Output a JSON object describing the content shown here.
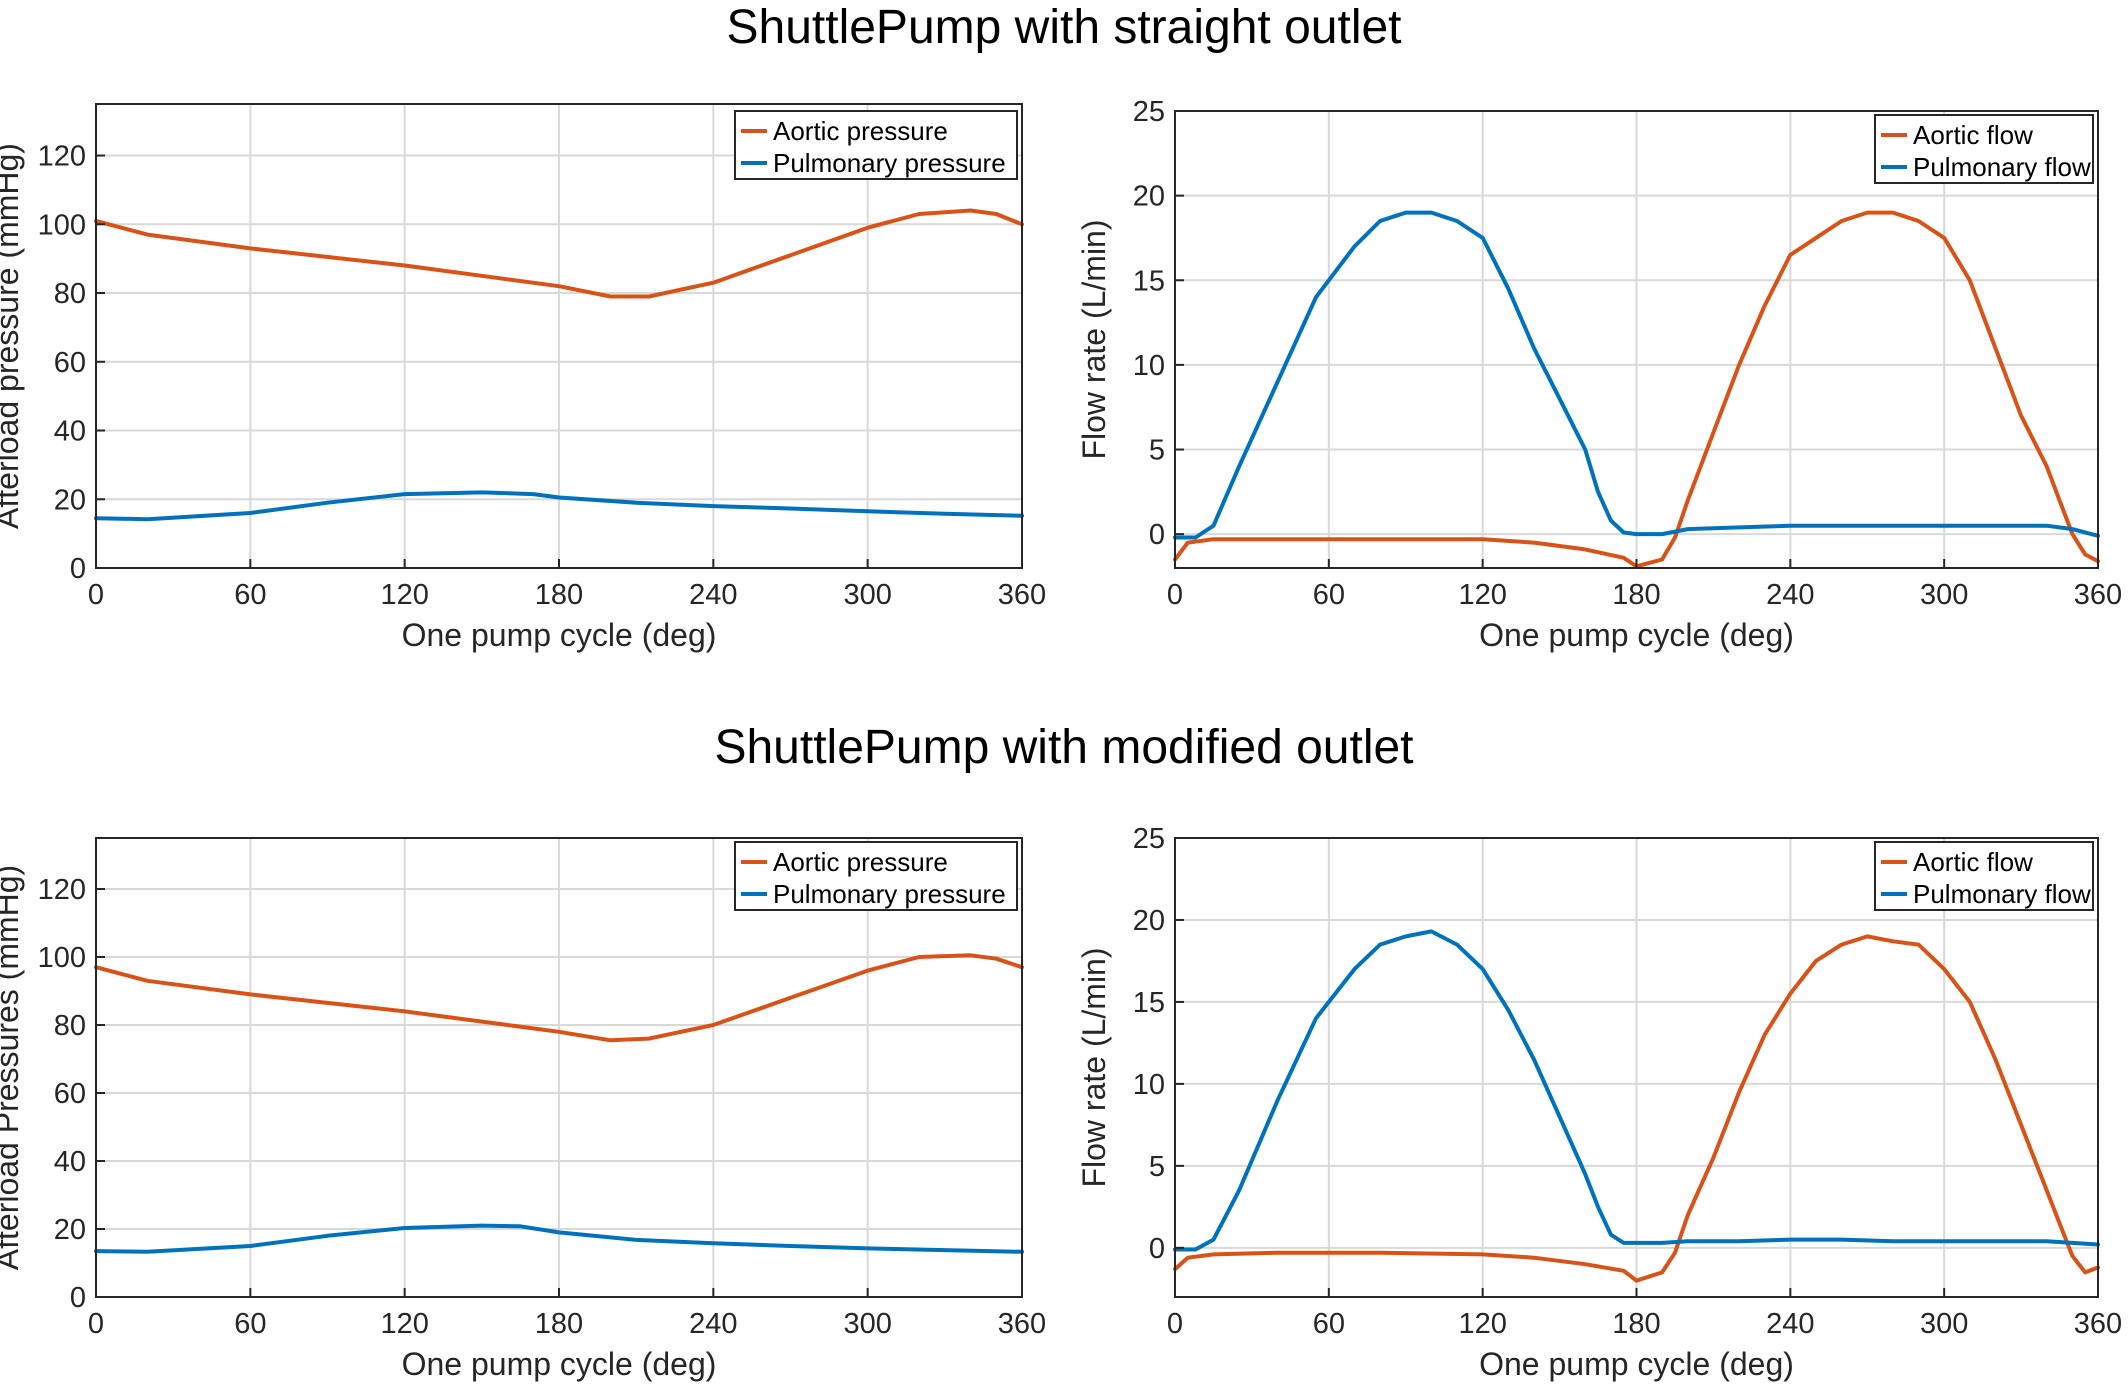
{
  "rows": [
    {
      "title": "ShuttlePump with straight outlet"
    },
    {
      "title": "ShuttlePump with modified outlet"
    }
  ],
  "colors": {
    "aortic": "#D95319",
    "pulmonary": "#0072BD",
    "grid": "#D9D9D9"
  },
  "chart_data": [
    {
      "type": "line",
      "title": "",
      "xlabel": "One pump cycle (deg)",
      "ylabel": "Afterload pressure (mmHg)",
      "xlim": [
        0,
        360
      ],
      "ylim": [
        0,
        135
      ],
      "xticks": [
        0,
        60,
        120,
        180,
        240,
        300,
        360
      ],
      "yticks": [
        0,
        20,
        40,
        60,
        80,
        100,
        120
      ],
      "grid": true,
      "legend": "top-right",
      "series": [
        {
          "name": "Aortic pressure",
          "color": "#D95319",
          "x": [
            0,
            20,
            60,
            120,
            160,
            180,
            200,
            215,
            240,
            270,
            300,
            320,
            340,
            350,
            360
          ],
          "y": [
            101,
            97,
            93,
            88,
            84,
            82,
            79,
            79,
            83,
            91,
            99,
            103,
            104,
            103,
            100
          ]
        },
        {
          "name": "Pulmonary pressure",
          "color": "#0072BD",
          "x": [
            0,
            20,
            60,
            90,
            120,
            150,
            170,
            180,
            210,
            240,
            270,
            300,
            330,
            360
          ],
          "y": [
            14.5,
            14.2,
            16,
            19,
            21.5,
            22,
            21.5,
            20.5,
            19,
            18,
            17.3,
            16.5,
            15.8,
            15.2
          ]
        }
      ]
    },
    {
      "type": "line",
      "title": "",
      "xlabel": "One pump cycle (deg)",
      "ylabel": "Flow rate (L/min)",
      "xlim": [
        0,
        360
      ],
      "ylim": [
        -2,
        25
      ],
      "xticks": [
        0,
        60,
        120,
        180,
        240,
        300,
        360
      ],
      "yticks": [
        0,
        5,
        10,
        15,
        20,
        25
      ],
      "grid": true,
      "legend": "top-right",
      "series": [
        {
          "name": "Aortic flow",
          "color": "#D95319",
          "x": [
            0,
            5,
            15,
            40,
            80,
            120,
            140,
            160,
            175,
            180,
            190,
            195,
            200,
            210,
            220,
            230,
            240,
            250,
            260,
            270,
            280,
            290,
            300,
            310,
            320,
            330,
            340,
            345,
            350,
            355,
            360
          ],
          "y": [
            -1.5,
            -0.5,
            -0.3,
            -0.3,
            -0.3,
            -0.3,
            -0.5,
            -0.9,
            -1.4,
            -1.9,
            -1.5,
            -0.2,
            2,
            6,
            10,
            13.5,
            16.5,
            17.5,
            18.5,
            19,
            19,
            18.5,
            17.5,
            15,
            11,
            7,
            4,
            2,
            0,
            -1.2,
            -1.6
          ]
        },
        {
          "name": "Pulmonary flow",
          "color": "#0072BD",
          "x": [
            0,
            8,
            15,
            25,
            40,
            55,
            70,
            80,
            90,
            100,
            110,
            120,
            130,
            140,
            150,
            160,
            165,
            170,
            175,
            180,
            190,
            200,
            220,
            240,
            260,
            280,
            300,
            320,
            340,
            350,
            360
          ],
          "y": [
            -0.2,
            -0.2,
            0.5,
            4,
            9,
            14,
            17,
            18.5,
            19,
            19,
            18.5,
            17.5,
            14.5,
            11,
            8,
            5,
            2.5,
            0.8,
            0.1,
            0,
            0,
            0.3,
            0.4,
            0.5,
            0.5,
            0.5,
            0.5,
            0.5,
            0.5,
            0.3,
            -0.1
          ]
        }
      ]
    },
    {
      "type": "line",
      "title": "",
      "xlabel": "One pump cycle (deg)",
      "ylabel": "Afterload Pressures (mmHg)",
      "xlim": [
        0,
        360
      ],
      "ylim": [
        0,
        135
      ],
      "xticks": [
        0,
        60,
        120,
        180,
        240,
        300,
        360
      ],
      "yticks": [
        0,
        20,
        40,
        60,
        80,
        100,
        120
      ],
      "grid": true,
      "legend": "top-right",
      "series": [
        {
          "name": "Aortic pressure",
          "color": "#D95319",
          "x": [
            0,
            20,
            60,
            120,
            160,
            180,
            200,
            215,
            240,
            270,
            300,
            320,
            340,
            350,
            360
          ],
          "y": [
            97,
            93,
            89,
            84,
            80,
            78,
            75.5,
            76,
            80,
            88,
            96,
            100,
            100.5,
            99.5,
            97
          ]
        },
        {
          "name": "Pulmonary pressure",
          "color": "#0072BD",
          "x": [
            0,
            20,
            60,
            90,
            120,
            150,
            165,
            180,
            210,
            240,
            270,
            300,
            330,
            360
          ],
          "y": [
            13.5,
            13.3,
            15,
            18,
            20.3,
            21,
            20.8,
            19,
            16.8,
            15.8,
            15,
            14.3,
            13.8,
            13.3
          ]
        }
      ]
    },
    {
      "type": "line",
      "title": "",
      "xlabel": "One pump cycle (deg)",
      "ylabel": "Flow rate (L/min)",
      "xlim": [
        0,
        360
      ],
      "ylim": [
        -3,
        25
      ],
      "xticks": [
        0,
        60,
        120,
        180,
        240,
        300,
        360
      ],
      "yticks": [
        0,
        5,
        10,
        15,
        20,
        25
      ],
      "grid": true,
      "legend": "top-right",
      "series": [
        {
          "name": "Aortic flow",
          "color": "#D95319",
          "x": [
            0,
            5,
            15,
            40,
            80,
            120,
            140,
            160,
            175,
            180,
            190,
            195,
            200,
            210,
            220,
            230,
            240,
            250,
            260,
            270,
            280,
            290,
            300,
            310,
            320,
            330,
            340,
            345,
            350,
            355,
            360
          ],
          "y": [
            -1.3,
            -0.6,
            -0.4,
            -0.3,
            -0.3,
            -0.4,
            -0.6,
            -1,
            -1.4,
            -2,
            -1.5,
            -0.3,
            2,
            5.5,
            9.5,
            13,
            15.5,
            17.5,
            18.5,
            19,
            18.7,
            18.5,
            17,
            15,
            11.5,
            7.5,
            3.5,
            1.5,
            -0.5,
            -1.5,
            -1.2
          ]
        },
        {
          "name": "Pulmonary flow",
          "color": "#0072BD",
          "x": [
            0,
            8,
            15,
            25,
            40,
            55,
            70,
            80,
            90,
            100,
            110,
            120,
            130,
            140,
            150,
            160,
            165,
            170,
            175,
            180,
            190,
            200,
            220,
            240,
            260,
            280,
            300,
            320,
            340,
            350,
            360
          ],
          "y": [
            -0.1,
            -0.1,
            0.5,
            3.5,
            9,
            14,
            17,
            18.5,
            19,
            19.3,
            18.5,
            17,
            14.5,
            11.5,
            8,
            4.5,
            2.5,
            0.8,
            0.3,
            0.3,
            0.3,
            0.4,
            0.4,
            0.5,
            0.5,
            0.4,
            0.4,
            0.4,
            0.4,
            0.3,
            0.2
          ]
        }
      ]
    }
  ]
}
